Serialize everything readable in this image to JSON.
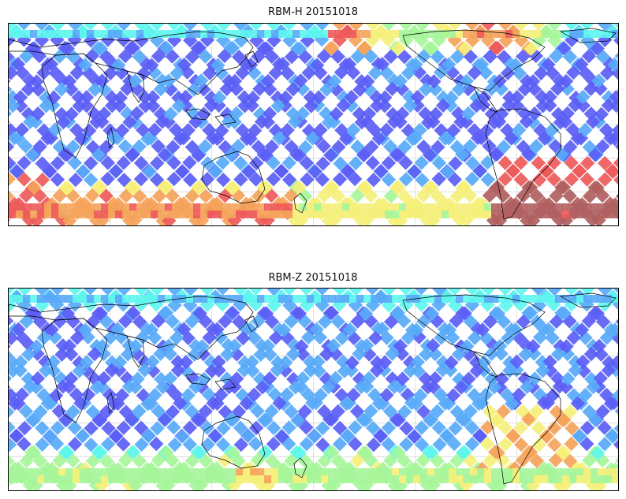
{
  "figure": {
    "panels": [
      {
        "title": "RBM-H 20151018"
      },
      {
        "title": "RBM-Z 20151018"
      }
    ]
  },
  "colors": {
    "low": "#5a5ef5",
    "mid_low": "#58aaf8",
    "cyan": "#5ef5ee",
    "green": "#a6f59a",
    "yellow": "#f5f07a",
    "orange": "#f5a35a",
    "red": "#ee5a5a",
    "dark_red": "#b06060",
    "coast": "#000000",
    "grid": "#cccccc"
  }
}
